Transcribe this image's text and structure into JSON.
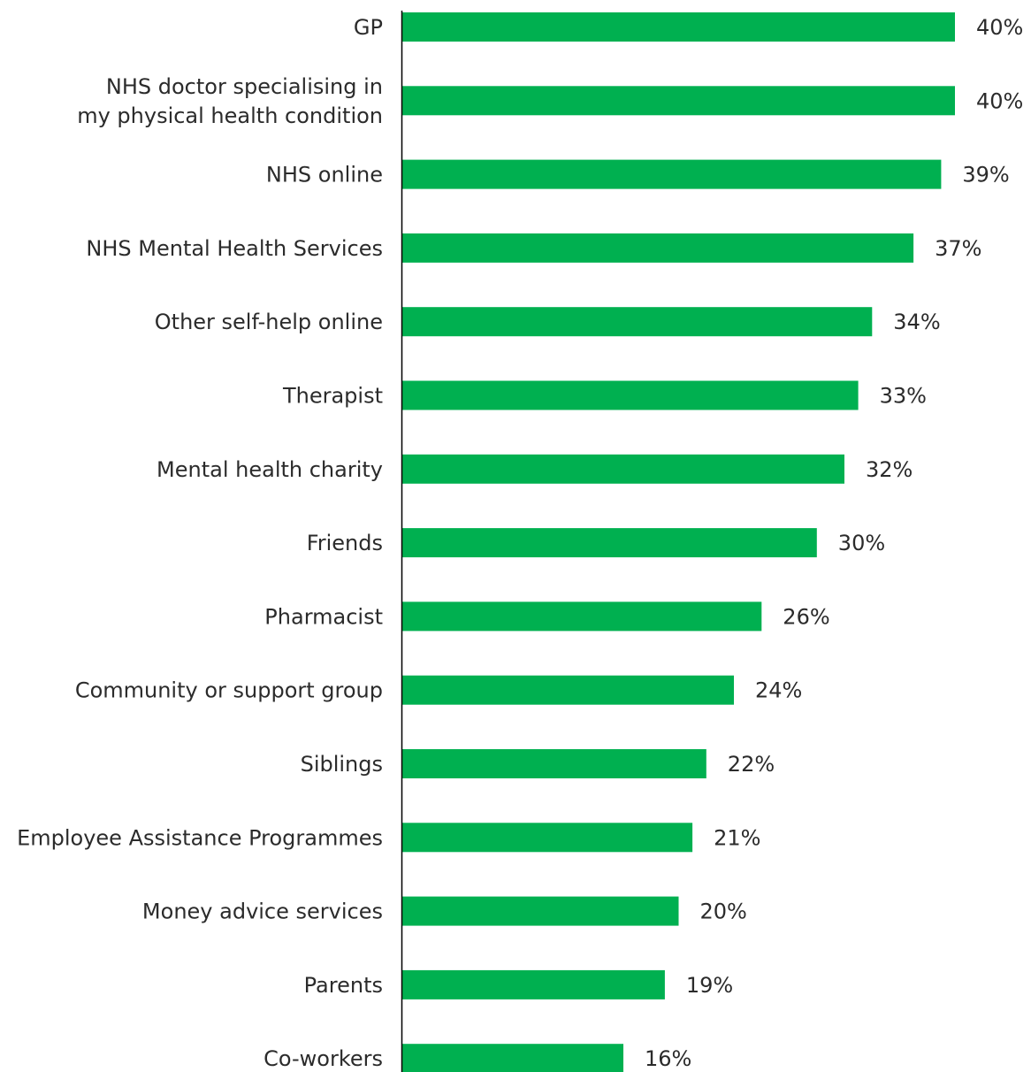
{
  "chart_data": {
    "type": "bar",
    "orientation": "horizontal",
    "categories": [
      "GP",
      "NHS doctor specialising in my physical health condition",
      "NHS online",
      "NHS Mental Health Services",
      "Other self-help online",
      "Therapist",
      "Mental health charity",
      "Friends",
      "Pharmacist",
      "Community or support group",
      "Siblings",
      "Employee Assistance Programmes",
      "Money advice services",
      "Parents",
      "Co-workers"
    ],
    "category_lines": [
      [
        "GP"
      ],
      [
        "NHS doctor specialising in",
        "my physical health condition"
      ],
      [
        "NHS online"
      ],
      [
        "NHS Mental Health Services"
      ],
      [
        "Other self-help online"
      ],
      [
        "Therapist"
      ],
      [
        "Mental health charity"
      ],
      [
        "Friends"
      ],
      [
        "Pharmacist"
      ],
      [
        "Community or support group"
      ],
      [
        "Siblings"
      ],
      [
        "Employee Assistance Programmes"
      ],
      [
        "Money advice services"
      ],
      [
        "Parents"
      ],
      [
        "Co-workers"
      ]
    ],
    "values": [
      40,
      40,
      39,
      37,
      34,
      33,
      32,
      30,
      26,
      24,
      22,
      21,
      20,
      19,
      16
    ],
    "value_labels": [
      "40%",
      "40%",
      "39%",
      "37%",
      "34%",
      "33%",
      "32%",
      "30%",
      "26%",
      "24%",
      "22%",
      "21%",
      "20%",
      "19%",
      "16%"
    ],
    "unit": "%",
    "title": "",
    "xlabel": "",
    "ylabel": "",
    "xlim": [
      0,
      40
    ],
    "grid": false,
    "legend": "none",
    "bar_color": "#00b050",
    "axis_color": "#000000",
    "text_color": "#2b2b2b"
  }
}
